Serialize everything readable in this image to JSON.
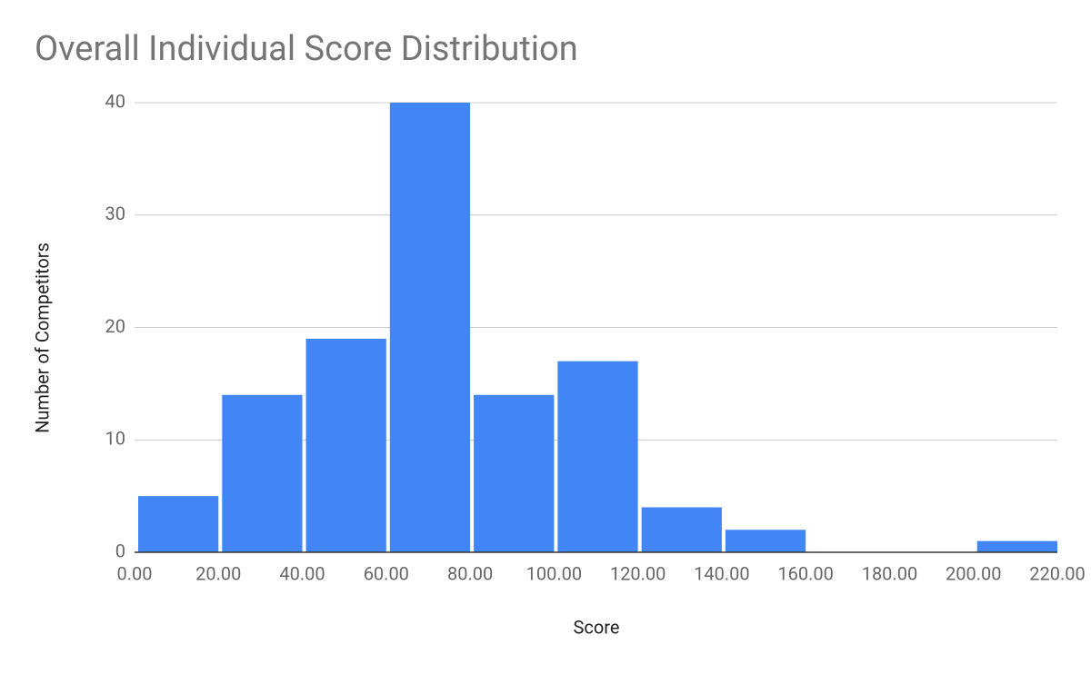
{
  "chart_data": {
    "type": "histogram",
    "title": "Overall Individual Score Distribution",
    "x_label": "Score",
    "y_label": "Number of Competitors",
    "bins": [
      0,
      20,
      40,
      60,
      80,
      100,
      120,
      140,
      160,
      180,
      200,
      220
    ],
    "values": [
      5,
      14,
      19,
      40,
      14,
      17,
      4,
      2,
      0,
      0,
      1
    ],
    "color": "#4285f4",
    "xlim": [
      0,
      220
    ],
    "xticks": [
      {
        "value": 0,
        "label": "0.00"
      },
      {
        "value": 20,
        "label": "20.00"
      },
      {
        "value": 40,
        "label": "40.00"
      },
      {
        "value": 60,
        "label": "60.00"
      },
      {
        "value": 80,
        "label": "80.00"
      },
      {
        "value": 100,
        "label": "100.00"
      },
      {
        "value": 120,
        "label": "120.00"
      },
      {
        "value": 140,
        "label": "140.00"
      },
      {
        "value": 160,
        "label": "160.00"
      },
      {
        "value": 180,
        "label": "180.00"
      },
      {
        "value": 200,
        "label": "200.00"
      },
      {
        "value": 220,
        "label": "220.00"
      }
    ],
    "ylim": [
      0,
      40
    ],
    "yticks": [
      0,
      10,
      20,
      30,
      40
    ],
    "grid": true
  }
}
